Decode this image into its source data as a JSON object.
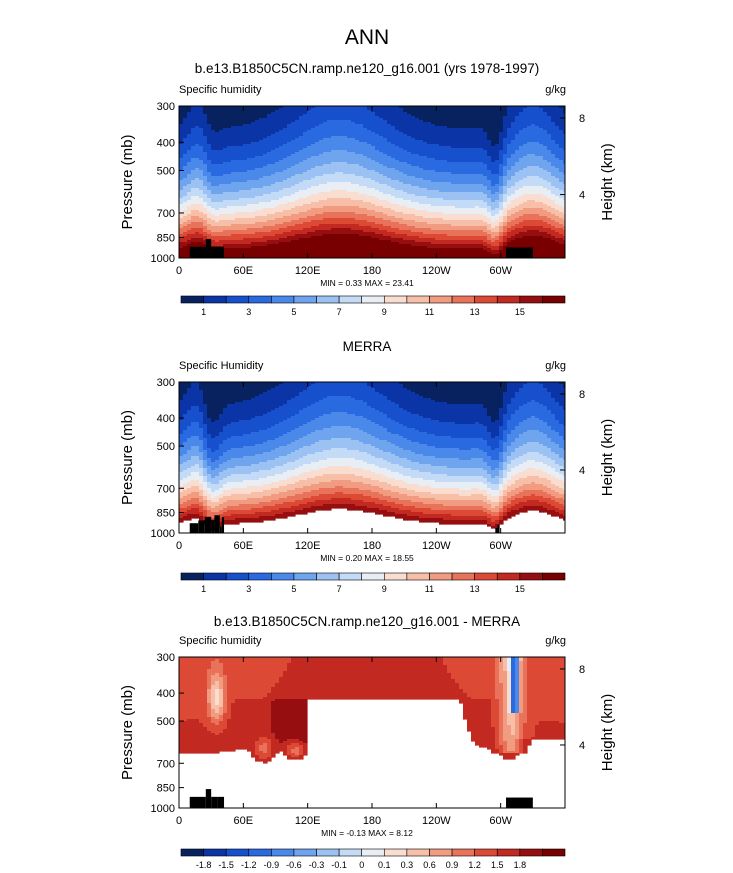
{
  "figure_title": "ANN",
  "chart_data": [
    {
      "type": "heatmap",
      "title": "b.e13.B1850C5CN.ramp.ne120_g16.001 (yrs 1978-1997)",
      "variable_label": "Specific humidity",
      "units": "g/kg",
      "ylabel": "Pressure (mb)",
      "y2label": "Height (km)",
      "x_ticks": [
        {
          "lon": 0,
          "label": "0"
        },
        {
          "lon": 60,
          "label": "60E"
        },
        {
          "lon": 120,
          "label": "120E"
        },
        {
          "lon": 180,
          "label": "180"
        },
        {
          "lon": 240,
          "label": "120W"
        },
        {
          "lon": 300,
          "label": "60W"
        }
      ],
      "xlim": [
        0,
        360
      ],
      "y_ticks": [
        {
          "p": 300,
          "label": "300"
        },
        {
          "p": 400,
          "label": "400"
        },
        {
          "p": 500,
          "label": "500"
        },
        {
          "p": 700,
          "label": "700"
        },
        {
          "p": 850,
          "label": "850"
        },
        {
          "p": 1000,
          "label": "1000"
        }
      ],
      "ylim": [
        1000,
        300
      ],
      "y2_ticks": [
        {
          "p": 330,
          "label": "8"
        },
        {
          "p": 605,
          "label": "4"
        }
      ],
      "stats": "MIN =   0.33  MAX =  23.41",
      "kind": "model",
      "colorbar_labels": [
        "1",
        "3",
        "5",
        "7",
        "9",
        "11",
        "13",
        "15"
      ]
    },
    {
      "type": "heatmap",
      "title": "MERRA",
      "variable_label": "Specific Humidity",
      "units": "g/kg",
      "ylabel": "Pressure (mb)",
      "y2label": "Height (km)",
      "x_ticks": [
        {
          "lon": 0,
          "label": "0"
        },
        {
          "lon": 60,
          "label": "60E"
        },
        {
          "lon": 120,
          "label": "120E"
        },
        {
          "lon": 180,
          "label": "180"
        },
        {
          "lon": 240,
          "label": "120W"
        },
        {
          "lon": 300,
          "label": "60W"
        }
      ],
      "xlim": [
        0,
        360
      ],
      "y_ticks": [
        {
          "p": 300,
          "label": "300"
        },
        {
          "p": 400,
          "label": "400"
        },
        {
          "p": 500,
          "label": "500"
        },
        {
          "p": 700,
          "label": "700"
        },
        {
          "p": 850,
          "label": "850"
        },
        {
          "p": 1000,
          "label": "1000"
        }
      ],
      "ylim": [
        1000,
        300
      ],
      "y2_ticks": [
        {
          "p": 330,
          "label": "8"
        },
        {
          "p": 605,
          "label": "4"
        }
      ],
      "stats": "MIN =   0.20  MAX =  18.55",
      "kind": "obs",
      "colorbar_labels": [
        "1",
        "3",
        "5",
        "7",
        "9",
        "11",
        "13",
        "15"
      ]
    },
    {
      "type": "heatmap",
      "title": "b.e13.B1850C5CN.ramp.ne120_g16.001 - MERRA",
      "variable_label": "Specific humidity",
      "units": "g/kg",
      "ylabel": "Pressure (mb)",
      "y2label": "Height (km)",
      "x_ticks": [
        {
          "lon": 0,
          "label": "0"
        },
        {
          "lon": 60,
          "label": "60E"
        },
        {
          "lon": 120,
          "label": "120E"
        },
        {
          "lon": 180,
          "label": "180"
        },
        {
          "lon": 240,
          "label": "120W"
        },
        {
          "lon": 300,
          "label": "60W"
        }
      ],
      "xlim": [
        0,
        360
      ],
      "y_ticks": [
        {
          "p": 300,
          "label": "300"
        },
        {
          "p": 400,
          "label": "400"
        },
        {
          "p": 500,
          "label": "500"
        },
        {
          "p": 700,
          "label": "700"
        },
        {
          "p": 850,
          "label": "850"
        },
        {
          "p": 1000,
          "label": "1000"
        }
      ],
      "ylim": [
        1000,
        300
      ],
      "y2_ticks": [
        {
          "p": 330,
          "label": "8"
        },
        {
          "p": 605,
          "label": "4"
        }
      ],
      "stats": "MIN =  -0.13  MAX =   8.12",
      "kind": "diff",
      "colorbar_labels": [
        "-1.8",
        "-1.5",
        "-1.2",
        "-0.9",
        "-0.6",
        "-0.3",
        "-0.1",
        "0",
        "0.1",
        "0.3",
        "0.6",
        "0.9",
        "1.2",
        "1.5",
        "1.8"
      ]
    }
  ],
  "colors": {
    "seq": [
      "#08215f",
      "#0b35a6",
      "#1750cc",
      "#2a6ae0",
      "#4a88ea",
      "#6fa4ef",
      "#9cc2f4",
      "#c4dbf7",
      "#e8eef4",
      "#f9ddd0",
      "#f7bfa8",
      "#f19c80",
      "#e8725a",
      "#dc4a36",
      "#c22a21",
      "#960e10",
      "#780000"
    ],
    "div": [
      "#08215f",
      "#0b35a6",
      "#1750cc",
      "#2a6ae0",
      "#4a88ea",
      "#6fa4ef",
      "#9cc2f4",
      "#c4dbf7",
      "#e8eef4",
      "#f9ddd0",
      "#f7bfa8",
      "#f19c80",
      "#e8725a",
      "#dc4a36",
      "#c22a21",
      "#960e10",
      "#780000"
    ],
    "topo": "#000000"
  }
}
